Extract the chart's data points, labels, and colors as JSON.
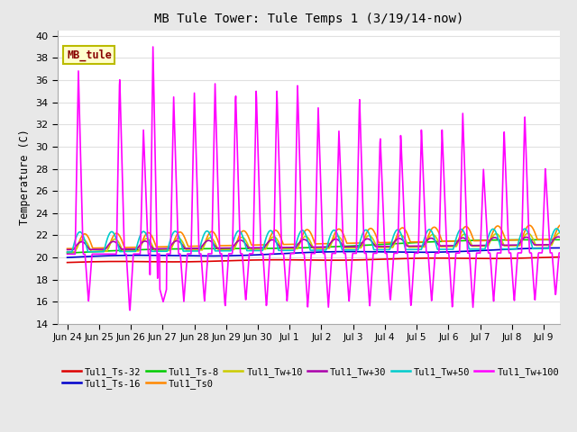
{
  "title": "MB Tule Tower: Tule Temps 1 (3/19/14-now)",
  "ylabel": "Temperature (C)",
  "ylim": [
    14,
    40.5
  ],
  "yticks": [
    14,
    16,
    18,
    20,
    22,
    24,
    26,
    28,
    30,
    32,
    34,
    36,
    38,
    40
  ],
  "xtick_labels": [
    "Jun 24",
    "Jun 25",
    "Jun 26",
    "Jun 27",
    "Jun 28",
    "Jun 29",
    "Jun 30",
    "Jul 1",
    "Jul 2",
    "Jul 3",
    "Jul 4",
    "Jul 5",
    "Jul 6",
    "Jul 7",
    "Jul 8",
    "Jul 9"
  ],
  "xtick_positions": [
    0,
    1,
    2,
    3,
    4,
    5,
    6,
    7,
    8,
    9,
    10,
    11,
    12,
    13,
    14,
    15
  ],
  "xlim": [
    -0.3,
    15.5
  ],
  "bg_color": "#e8e8e8",
  "plot_bg_color": "#ffffff",
  "grid_color": "#e0e0e0",
  "series_colors": {
    "Tul1_Ts-32": "#dd0000",
    "Tul1_Ts-16": "#0000cc",
    "Tul1_Ts-8": "#00cc00",
    "Tul1_Ts0": "#ff8800",
    "Tul1_Tw+10": "#cccc00",
    "Tul1_Tw+30": "#aa00aa",
    "Tul1_Tw+50": "#00cccc",
    "Tul1_Tw+100": "#ff00ff"
  },
  "annotation_text": "MB_tule",
  "magenta_peaks": [
    0.35,
    1.0,
    1.65,
    2.4,
    2.7,
    3.35,
    4.0,
    4.65,
    5.3,
    5.95,
    6.6,
    7.25,
    7.9,
    8.55,
    9.2,
    9.85,
    10.5,
    11.15,
    11.8,
    12.45,
    13.1,
    13.75,
    14.4,
    15.05
  ],
  "magenta_heights": [
    37,
    21,
    36.5,
    31.5,
    39,
    34.5,
    35,
    36,
    35,
    35,
    35,
    35.5,
    33.5,
    31.5,
    34.5,
    31,
    31,
    31.5,
    31.5,
    33,
    28,
    31.5,
    33,
    28
  ],
  "magenta_troughs": [
    16,
    19.5,
    15,
    16.5,
    16,
    16,
    16,
    15.5,
    16,
    15.5,
    16,
    15.5,
    15.5,
    16,
    15.5,
    16,
    15.5,
    16,
    15.5,
    15.5,
    16,
    16,
    16,
    16.5
  ]
}
